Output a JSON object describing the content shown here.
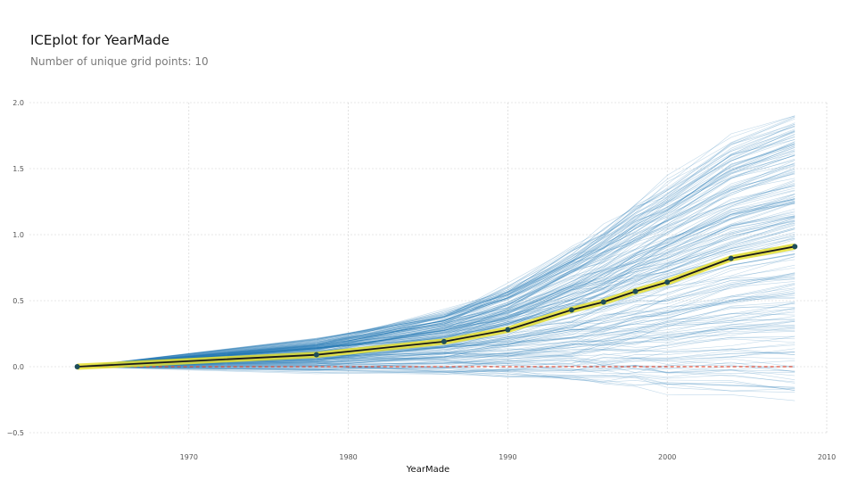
{
  "header": {
    "title": "ICEplot for YearMade",
    "subtitle": "Number of unique grid points: 10"
  },
  "chart_data": {
    "type": "line",
    "title": "ICEplot for YearMade",
    "subtitle": "Number of unique grid points: 10",
    "xlabel": "YearMade",
    "ylabel": "",
    "xlim": [
      1960,
      2010
    ],
    "ylim": [
      -0.5,
      2.0
    ],
    "x_ticks": [
      "1970",
      "1980",
      "1990",
      "2000",
      "2010"
    ],
    "y_ticks": [
      "2.0",
      "1.5",
      "1.0",
      "0.5",
      "0.0",
      "−0.5"
    ],
    "x_tick_values": [
      1970,
      1980,
      1990,
      2000,
      2010
    ],
    "y_tick_values": [
      2.0,
      1.5,
      1.0,
      0.5,
      0.0,
      -0.5
    ],
    "grid": true,
    "grid_points": [
      1963,
      1978,
      1986,
      1990,
      1994,
      1996,
      1998,
      2000,
      2004,
      2008
    ],
    "average_line": {
      "values": [
        0.0,
        0.09,
        0.19,
        0.28,
        0.43,
        0.49,
        0.57,
        0.64,
        0.82,
        0.91
      ],
      "color": "#1a1a1a",
      "highlight_color": "#e8e030",
      "marker_color": "#1f4e5a"
    },
    "reference_line": {
      "y": 0.0,
      "color": "#e0503c",
      "style": "dashed"
    },
    "ice_lines": {
      "count": 220,
      "color": "#1f77b4",
      "range_low_at_end": -0.22,
      "range_high_at_end": 1.9
    }
  }
}
